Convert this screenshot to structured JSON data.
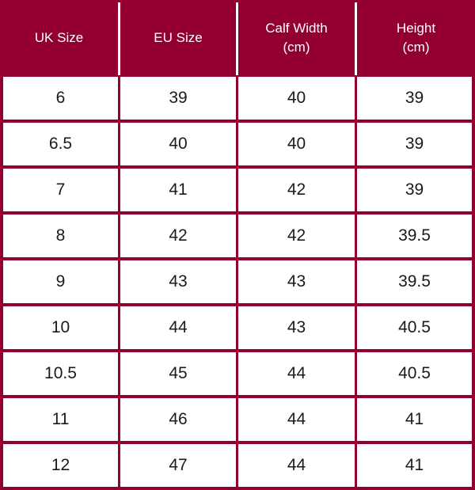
{
  "table": {
    "headers": [
      {
        "line1": "UK Size",
        "line2": ""
      },
      {
        "line1": "EU Size",
        "line2": ""
      },
      {
        "line1": "Calf Width",
        "line2": "(cm)"
      },
      {
        "line1": "Height",
        "line2": "(cm)"
      }
    ],
    "rows": [
      [
        "6",
        "39",
        "40",
        "39"
      ],
      [
        "6.5",
        "40",
        "40",
        "39"
      ],
      [
        "7",
        "41",
        "42",
        "39"
      ],
      [
        "8",
        "42",
        "42",
        "39.5"
      ],
      [
        "9",
        "43",
        "43",
        "39.5"
      ],
      [
        "10",
        "44",
        "43",
        "40.5"
      ],
      [
        "10.5",
        "45",
        "44",
        "40.5"
      ],
      [
        "11",
        "46",
        "44",
        "41"
      ],
      [
        "12",
        "47",
        "44",
        "41"
      ]
    ]
  },
  "colors": {
    "header_background": "#93002f",
    "grid_lines": "#93002f",
    "header_text": "#ffffff",
    "cell_background": "#ffffff"
  }
}
